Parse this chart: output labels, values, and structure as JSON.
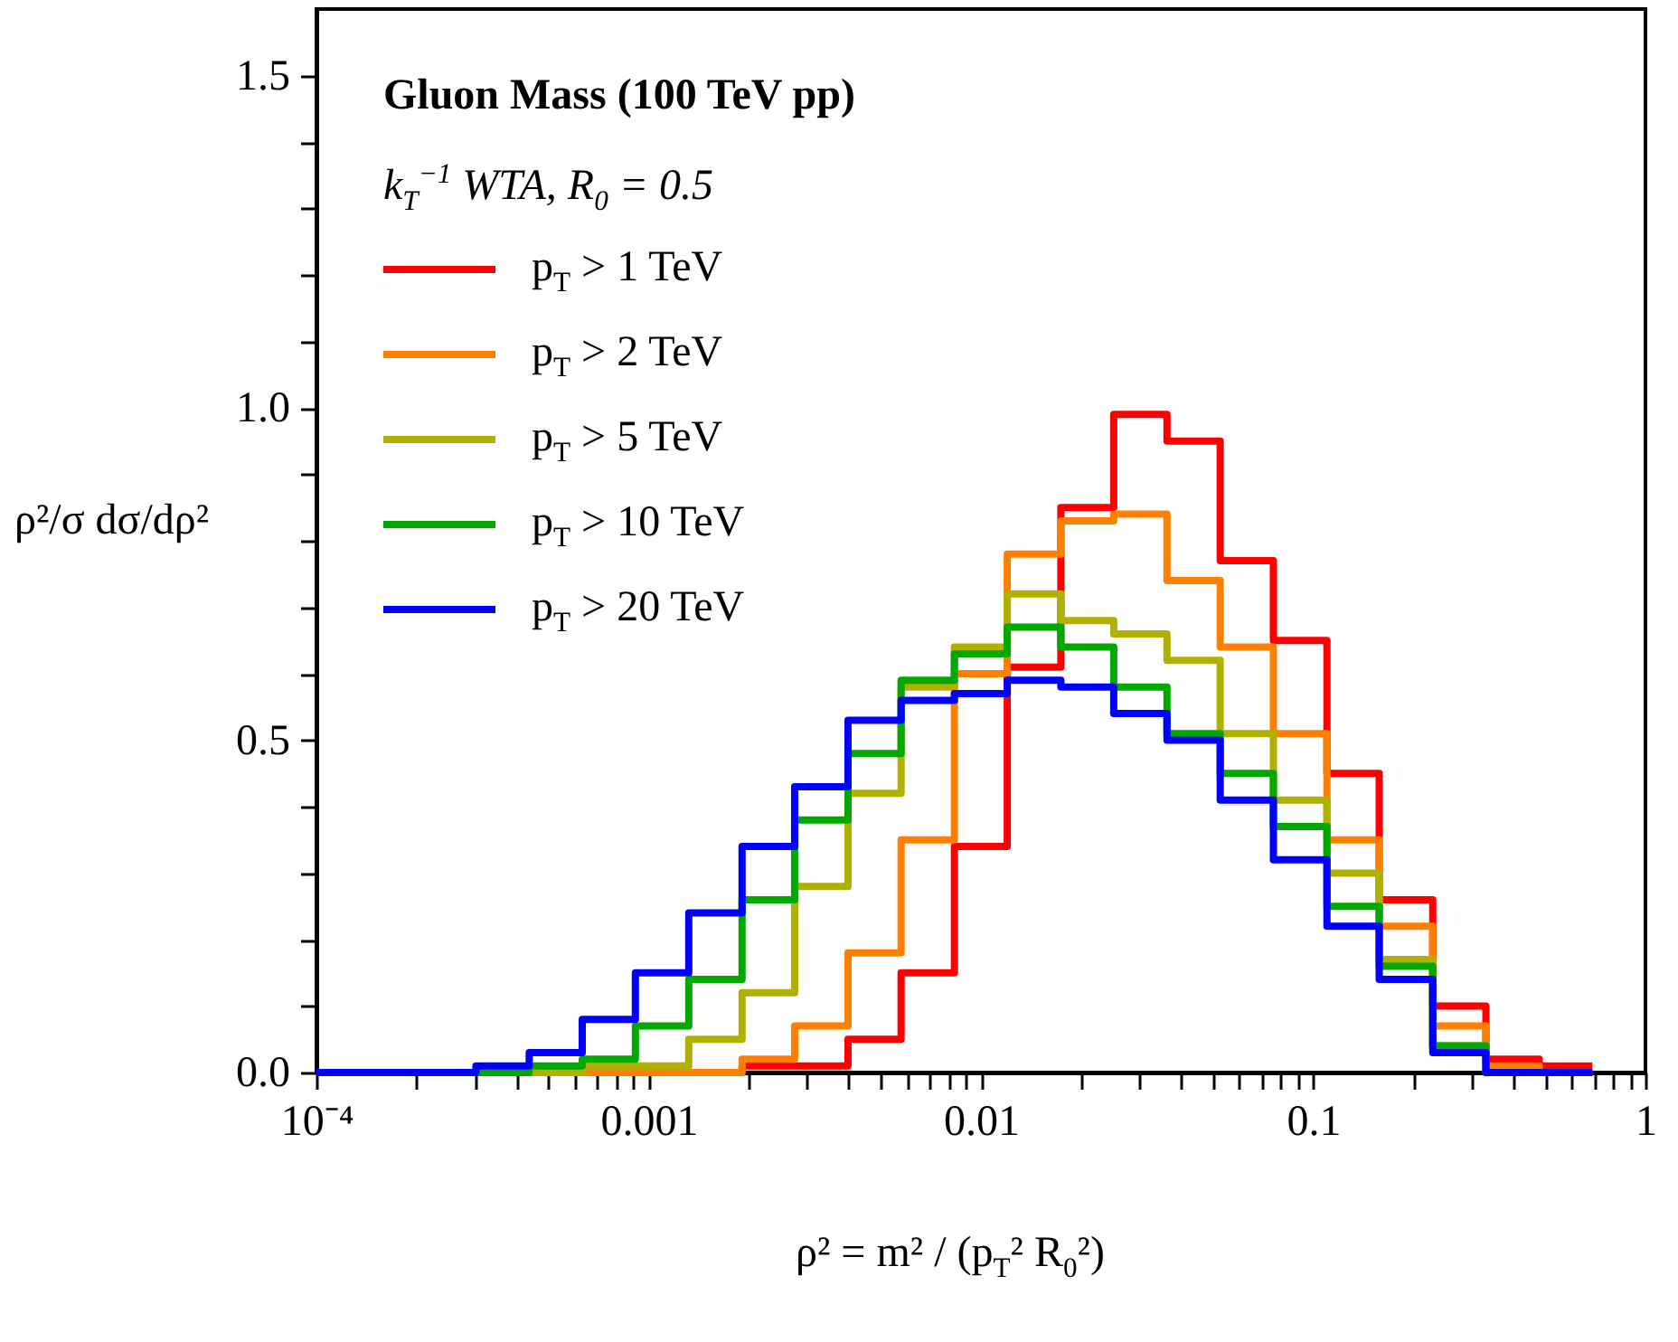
{
  "chart_data": {
    "type": "step",
    "title": "Gluon Mass (100 TeV pp)",
    "legend_title": "k$_{T}$$^{−1}$ WTA, R$_{0}$ = 0.5",
    "xlabel": "ρ² = m² / (p$_{T}$² R$_{0}$²)",
    "ylabel": "ρ²/σ dσ/dρ²",
    "log": "x",
    "legend": "top left",
    "grid": false,
    "x": [
      0.0001,
      0.000145,
      0.000209,
      0.000302,
      0.000437,
      0.000631,
      0.000912,
      0.00132,
      0.00191,
      0.00275,
      0.00398,
      0.00575,
      0.00832,
      0.012,
      0.0174,
      0.0251,
      0.0363,
      0.0525,
      0.0759,
      0.11,
      0.158,
      0.229,
      0.331,
      0.479,
      0.692
    ],
    "series": [
      {
        "name": "p$_{T}$ > 1 TeV",
        "color": "#ff0000",
        "values": [
          null,
          null,
          null,
          null,
          null,
          null,
          null,
          0,
          0.01,
          0.01,
          0.05,
          0.15,
          0.34,
          0.61,
          0.85,
          0.99,
          0.95,
          0.77,
          0.65,
          0.45,
          0.26,
          0.1,
          0.02,
          0.01,
          0.01
        ]
      },
      {
        "name": "p$_{T}$ > 2 TeV",
        "color": "#ff8000",
        "values": [
          null,
          null,
          null,
          null,
          0,
          0,
          0,
          0,
          0.02,
          0.07,
          0.18,
          0.35,
          0.6,
          0.78,
          0.83,
          0.84,
          0.74,
          0.64,
          0.51,
          0.35,
          0.22,
          0.07,
          0.01,
          0,
          0
        ]
      },
      {
        "name": "p$_{T}$ > 5 TeV",
        "color": "#b0b000",
        "values": [
          null,
          null,
          null,
          0,
          0,
          0.01,
          0.01,
          0.05,
          0.12,
          0.28,
          0.42,
          0.58,
          0.64,
          0.72,
          0.68,
          0.66,
          0.62,
          0.51,
          0.41,
          0.3,
          0.17,
          0.04,
          0,
          null,
          null
        ]
      },
      {
        "name": "p$_{T}$ > 10 TeV",
        "color": "#00a800",
        "values": [
          null,
          null,
          null,
          0,
          0.01,
          0.02,
          0.07,
          0.14,
          0.26,
          0.38,
          0.48,
          0.59,
          0.63,
          0.67,
          0.64,
          0.58,
          0.51,
          0.45,
          0.37,
          0.25,
          0.16,
          0.04,
          0,
          0,
          0
        ]
      },
      {
        "name": "p$_{T}$ > 20 TeV",
        "color": "#0000ff",
        "values": [
          0,
          0,
          0,
          0.01,
          0.03,
          0.08,
          0.15,
          0.24,
          0.34,
          0.43,
          0.53,
          0.56,
          0.57,
          0.59,
          0.58,
          0.54,
          0.5,
          0.41,
          0.32,
          0.22,
          0.14,
          0.03,
          0,
          0,
          0
        ]
      }
    ],
    "xlim": [
      0.0001,
      1
    ],
    "xticks": [
      {
        "value": 0.0001,
        "label": "10⁻⁴"
      },
      {
        "value": 0.0002,
        "label": null
      },
      {
        "value": 0.0003,
        "label": null
      },
      {
        "value": 0.0004,
        "label": null
      },
      {
        "value": 0.0005,
        "label": null
      },
      {
        "value": 0.0006,
        "label": null
      },
      {
        "value": 0.0007,
        "label": null
      },
      {
        "value": 0.0008,
        "label": null
      },
      {
        "value": 0.0009,
        "label": null
      },
      0.001,
      {
        "value": 0.002,
        "label": null
      },
      {
        "value": 0.003,
        "label": null
      },
      {
        "value": 0.004,
        "label": null
      },
      {
        "value": 0.005,
        "label": null
      },
      {
        "value": 0.006,
        "label": null
      },
      {
        "value": 0.007,
        "label": null
      },
      {
        "value": 0.008,
        "label": null
      },
      {
        "value": 0.009,
        "label": null
      },
      0.01,
      {
        "value": 0.02,
        "label": null
      },
      {
        "value": 0.03,
        "label": null
      },
      {
        "value": 0.04,
        "label": null
      },
      {
        "value": 0.05,
        "label": null
      },
      {
        "value": 0.06,
        "label": null
      },
      {
        "value": 0.07,
        "label": null
      },
      {
        "value": 0.08,
        "label": null
      },
      {
        "value": 0.09,
        "label": null
      },
      0.1,
      {
        "value": 0.2,
        "label": null
      },
      {
        "value": 0.3,
        "label": null
      },
      {
        "value": 0.4,
        "label": null
      },
      {
        "value": 0.5,
        "label": null
      },
      {
        "value": 0.6,
        "label": null
      },
      {
        "value": 0.7,
        "label": null
      },
      {
        "value": 0.8,
        "label": null
      },
      {
        "value": 0.9,
        "label": null
      },
      1
    ],
    "ylim": [
      0,
      1.6
    ],
    "yticks": [
      {
        "value": 0,
        "label": "0.0"
      },
      {
        "value": 0.1,
        "label": null
      },
      {
        "value": 0.2,
        "label": null
      },
      {
        "value": 0.3,
        "label": null
      },
      {
        "value": 0.4,
        "label": null
      },
      {
        "value": 0.5,
        "label": "0.5"
      },
      {
        "value": 0.6,
        "label": null
      },
      {
        "value": 0.7,
        "label": null
      },
      {
        "value": 0.8,
        "label": null
      },
      {
        "value": 0.9,
        "label": null
      },
      {
        "value": 1,
        "label": "1.0"
      },
      {
        "value": 1.1,
        "label": null
      },
      {
        "value": 1.2,
        "label": null
      },
      {
        "value": 1.3,
        "label": null
      },
      {
        "value": 1.4,
        "label": null
      },
      {
        "value": 1.5,
        "label": "1.5"
      }
    ]
  }
}
